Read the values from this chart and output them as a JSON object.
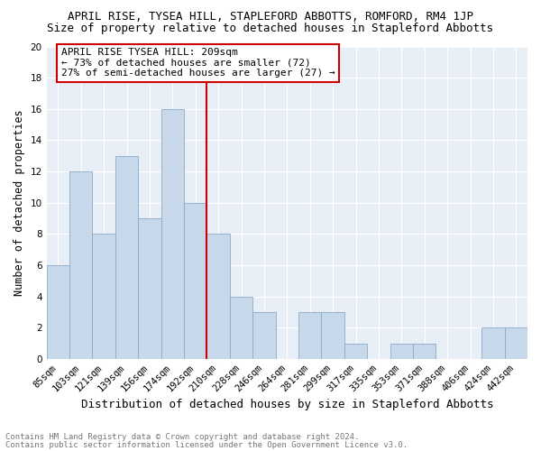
{
  "title1": "APRIL RISE, TYSEA HILL, STAPLEFORD ABBOTTS, ROMFORD, RM4 1JP",
  "title2": "Size of property relative to detached houses in Stapleford Abbotts",
  "xlabel": "Distribution of detached houses by size in Stapleford Abbotts",
  "ylabel": "Number of detached properties",
  "categories": [
    "85sqm",
    "103sqm",
    "121sqm",
    "139sqm",
    "156sqm",
    "174sqm",
    "192sqm",
    "210sqm",
    "228sqm",
    "246sqm",
    "264sqm",
    "281sqm",
    "299sqm",
    "317sqm",
    "335sqm",
    "353sqm",
    "371sqm",
    "388sqm",
    "406sqm",
    "424sqm",
    "442sqm"
  ],
  "values": [
    6,
    12,
    8,
    13,
    9,
    16,
    10,
    8,
    4,
    3,
    0,
    3,
    3,
    1,
    0,
    1,
    1,
    0,
    0,
    2,
    2
  ],
  "bar_color": "#c8d8eb",
  "bar_edge_color": "#8aaac8",
  "reference_line_color": "#cc0000",
  "annotation_box_color": "#ffffff",
  "annotation_box_edge": "#cc0000",
  "ylim": [
    0,
    20
  ],
  "yticks": [
    0,
    2,
    4,
    6,
    8,
    10,
    12,
    14,
    16,
    18,
    20
  ],
  "footnote1": "Contains HM Land Registry data © Crown copyright and database right 2024.",
  "footnote2": "Contains public sector information licensed under the Open Government Licence v3.0.",
  "plot_bg_color": "#e8eef5",
  "title1_fontsize": 9,
  "title2_fontsize": 9,
  "xlabel_fontsize": 9,
  "ylabel_fontsize": 8.5,
  "tick_fontsize": 7.5,
  "footnote_fontsize": 6.5,
  "annotation_fontsize": 8
}
